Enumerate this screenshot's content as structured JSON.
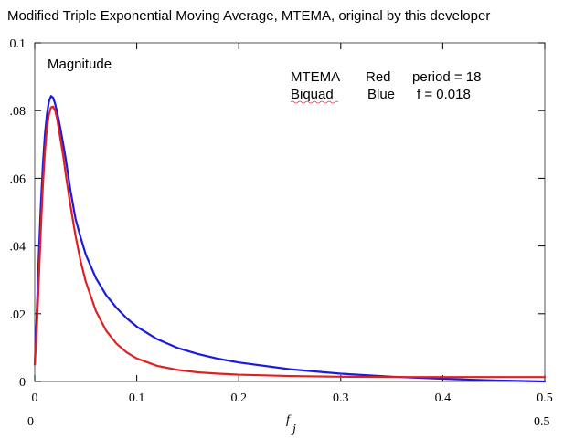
{
  "chart_data": {
    "type": "line",
    "title": "Modified Triple Exponential Moving Average, MTEMA, original by this developer",
    "xlabel": "f",
    "xlabel_subscript": "j",
    "x_range_start": "0",
    "x_range_end": "0.5",
    "ylabel": "",
    "xlim": [
      0,
      0.5
    ],
    "ylim": [
      0,
      0.1
    ],
    "x_ticks": [
      0,
      0.1,
      0.2,
      0.3,
      0.4,
      0.5
    ],
    "x_tick_labels": [
      "0",
      "0.1",
      "0.2",
      "0.3",
      "0.4",
      "0.5"
    ],
    "y_ticks": [
      0,
      0.02,
      0.04,
      0.06,
      0.08,
      0.1
    ],
    "y_tick_labels": [
      "0",
      ".02",
      ".04",
      ".06",
      ".08",
      "0.1"
    ],
    "grid": false,
    "annotations": {
      "plot_label": "Magnitude",
      "legend_row1": {
        "name": "MTEMA",
        "color_name": "Red",
        "param": "period = 18"
      },
      "legend_row2": {
        "name": "Biquad",
        "color_name": "Blue",
        "param": "f = 0.018"
      }
    },
    "series": [
      {
        "name": "MTEMA",
        "color": "#e02020",
        "x": [
          0,
          0.002,
          0.004,
          0.006,
          0.008,
          0.01,
          0.012,
          0.014,
          0.016,
          0.018,
          0.02,
          0.022,
          0.025,
          0.028,
          0.03,
          0.035,
          0.04,
          0.045,
          0.05,
          0.06,
          0.07,
          0.08,
          0.09,
          0.1,
          0.12,
          0.14,
          0.16,
          0.18,
          0.2,
          0.25,
          0.3,
          0.35,
          0.4,
          0.45,
          0.5
        ],
        "y": [
          0.005,
          0.015,
          0.03,
          0.045,
          0.058,
          0.068,
          0.075,
          0.079,
          0.081,
          0.0812,
          0.08,
          0.0775,
          0.072,
          0.0665,
          0.062,
          0.052,
          0.043,
          0.0355,
          0.0295,
          0.0208,
          0.015,
          0.0112,
          0.0086,
          0.0068,
          0.0046,
          0.0034,
          0.0027,
          0.0023,
          0.002,
          0.0016,
          0.0014,
          0.0013,
          0.0013,
          0.0013,
          0.0013
        ]
      },
      {
        "name": "Biquad",
        "color": "#1a1ae0",
        "x": [
          0,
          0.002,
          0.004,
          0.006,
          0.008,
          0.01,
          0.012,
          0.014,
          0.016,
          0.018,
          0.02,
          0.022,
          0.025,
          0.028,
          0.03,
          0.035,
          0.04,
          0.045,
          0.05,
          0.06,
          0.07,
          0.08,
          0.09,
          0.1,
          0.12,
          0.14,
          0.16,
          0.18,
          0.2,
          0.25,
          0.3,
          0.35,
          0.4,
          0.45,
          0.5
        ],
        "y": [
          0.005,
          0.02,
          0.037,
          0.052,
          0.064,
          0.073,
          0.079,
          0.0828,
          0.0843,
          0.0838,
          0.082,
          0.0795,
          0.075,
          0.07,
          0.0665,
          0.0565,
          0.048,
          0.0425,
          0.0375,
          0.0305,
          0.0255,
          0.0218,
          0.0187,
          0.0162,
          0.0125,
          0.0099,
          0.0081,
          0.0067,
          0.0056,
          0.0036,
          0.0023,
          0.0014,
          0.0008,
          0.0003,
          0.0
        ]
      }
    ]
  }
}
